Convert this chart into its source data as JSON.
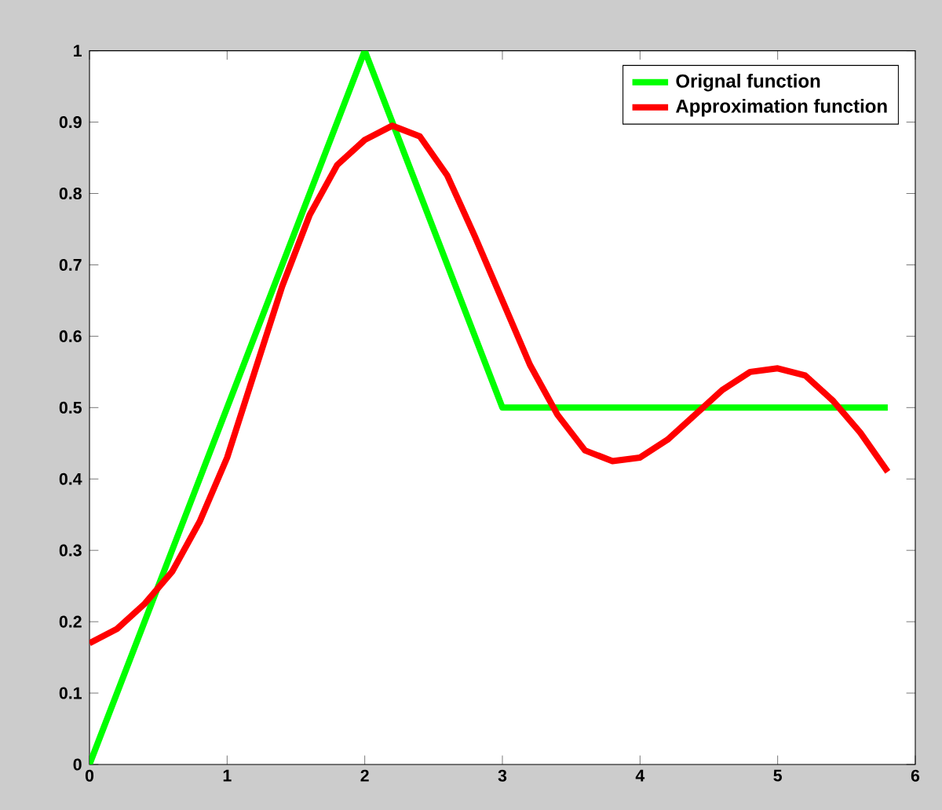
{
  "chart_data": {
    "type": "line",
    "xlim": [
      0,
      6
    ],
    "ylim": [
      0,
      1
    ],
    "xticks": [
      0,
      1,
      2,
      3,
      4,
      5,
      6
    ],
    "yticks": [
      0,
      0.1,
      0.2,
      0.3,
      0.4,
      0.5,
      0.6,
      0.7,
      0.8,
      0.9,
      1
    ],
    "grid": false,
    "legend": "top right",
    "marker": "none",
    "line_style": "solid",
    "series": [
      {
        "name": "Orignal function",
        "color": "#00ff00",
        "x": [
          0,
          2,
          3,
          5.8
        ],
        "values": [
          0,
          1,
          0.5,
          0.5
        ]
      },
      {
        "name": "Approximation function",
        "color": "#ff0000",
        "x": [
          0,
          0.2,
          0.4,
          0.6,
          0.8,
          1.0,
          1.2,
          1.4,
          1.6,
          1.8,
          2.0,
          2.2,
          2.4,
          2.6,
          2.8,
          3.0,
          3.2,
          3.4,
          3.6,
          3.8,
          4.0,
          4.2,
          4.4,
          4.6,
          4.8,
          5.0,
          5.2,
          5.4,
          5.6,
          5.8
        ],
        "values": [
          0.17,
          0.19,
          0.225,
          0.27,
          0.34,
          0.43,
          0.55,
          0.67,
          0.77,
          0.84,
          0.875,
          0.895,
          0.88,
          0.825,
          0.74,
          0.65,
          0.56,
          0.49,
          0.44,
          0.425,
          0.43,
          0.455,
          0.49,
          0.525,
          0.55,
          0.555,
          0.545,
          0.51,
          0.465,
          0.41
        ]
      }
    ]
  }
}
